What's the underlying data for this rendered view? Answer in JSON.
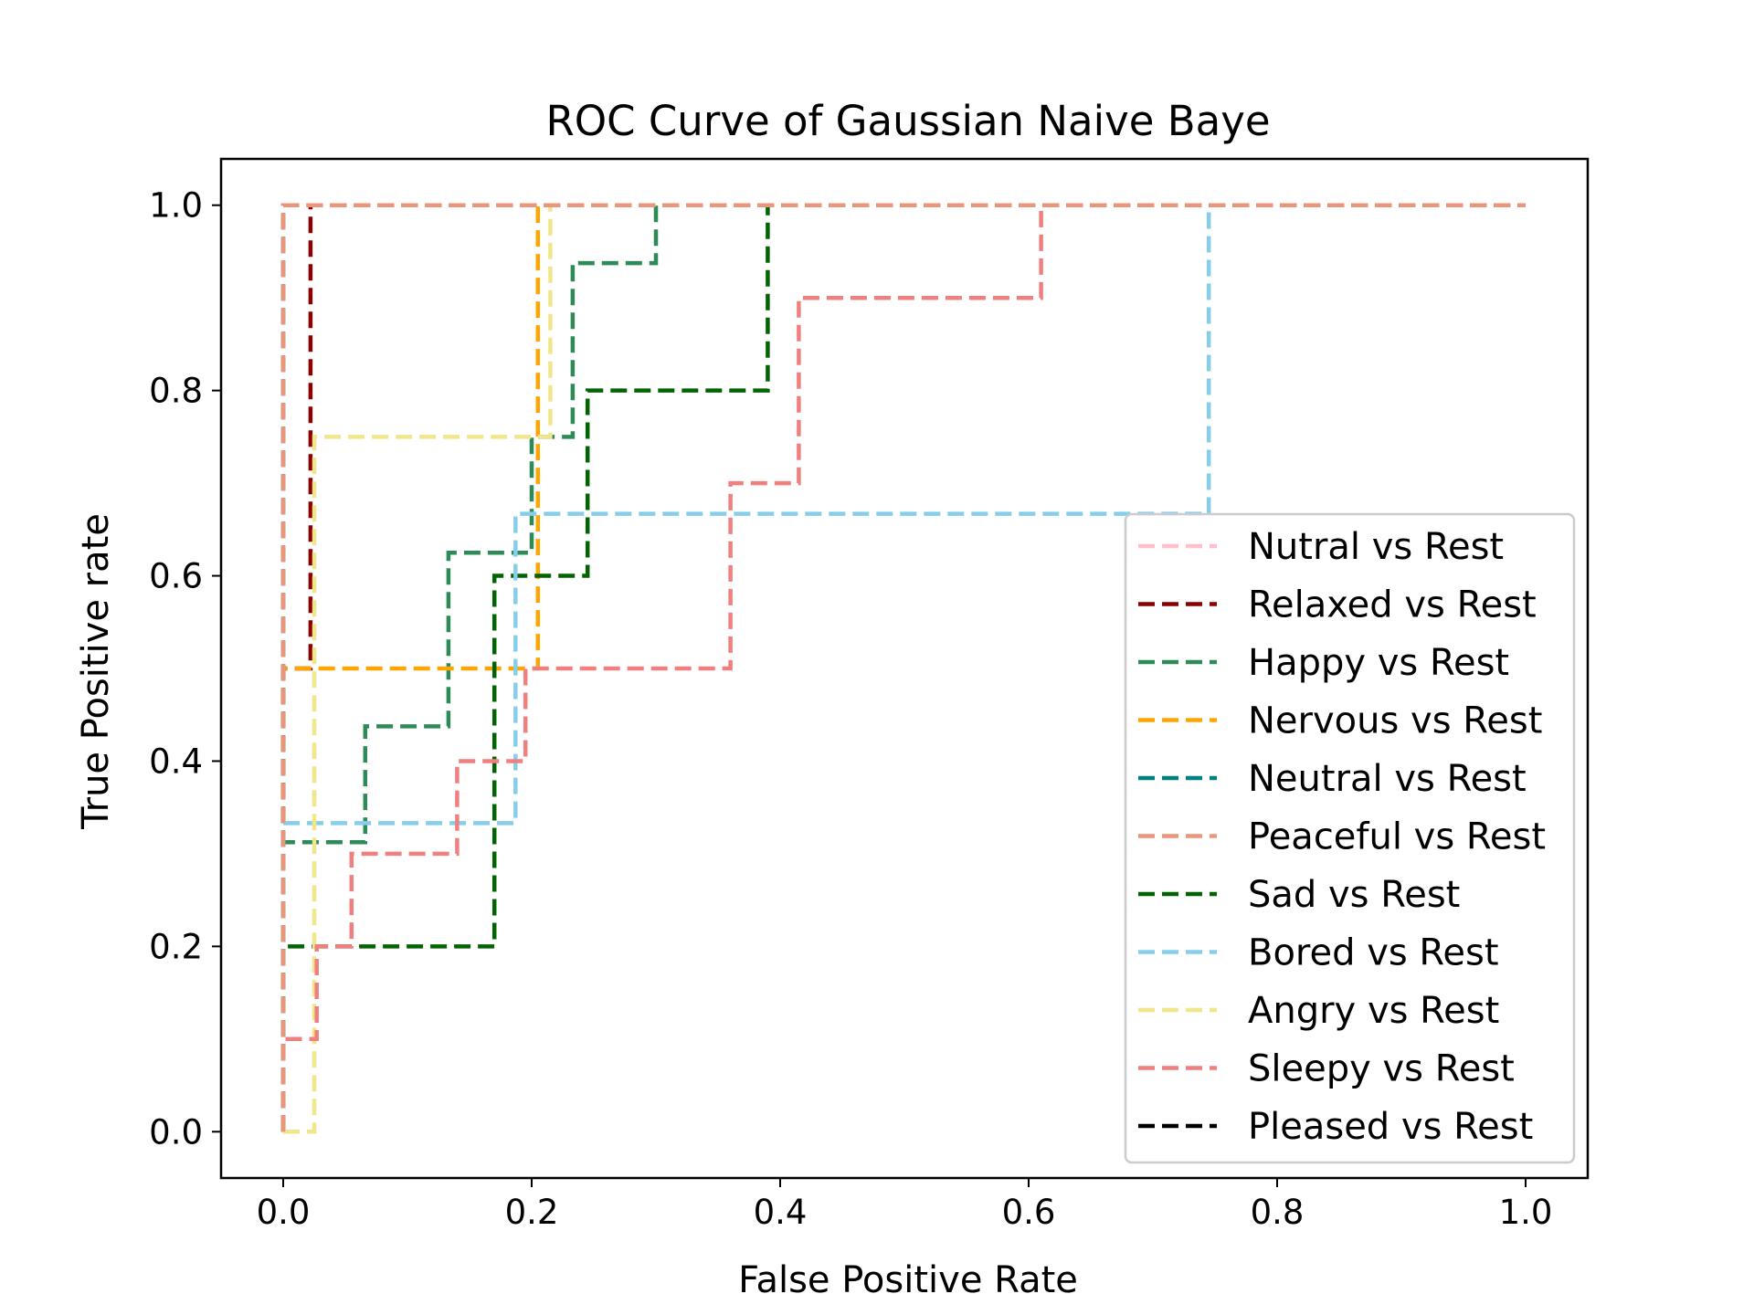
{
  "chart_data": {
    "type": "line",
    "title": "ROC Curve of Gaussian Naive Baye",
    "xlabel": "False Positive Rate",
    "ylabel": "True Positive rate",
    "xlim": [
      -0.05,
      1.05
    ],
    "ylim": [
      -0.05,
      1.05
    ],
    "xticks": [
      "0.0",
      "0.2",
      "0.4",
      "0.6",
      "0.8",
      "1.0"
    ],
    "yticks": [
      "0.0",
      "0.2",
      "0.4",
      "0.6",
      "0.8",
      "1.0"
    ],
    "grid": false,
    "legend_position": "lower-right",
    "line_style": "dashed",
    "series": [
      {
        "name": "Nutral vs Rest",
        "color": "#ffc0cb",
        "x": [
          0,
          0,
          1
        ],
        "y": [
          0,
          1,
          1
        ]
      },
      {
        "name": "Relaxed vs Rest",
        "color": "#8b0000",
        "x": [
          0,
          0,
          0.022,
          0.022,
          1
        ],
        "y": [
          0,
          0.5,
          0.5,
          1,
          1
        ]
      },
      {
        "name": "Happy vs Rest",
        "color": "#2e8b57",
        "x": [
          0,
          0,
          0.066,
          0.066,
          0.133,
          0.133,
          0.2,
          0.2,
          0.233,
          0.233,
          0.3,
          0.3,
          1
        ],
        "y": [
          0,
          0.3125,
          0.3125,
          0.4375,
          0.4375,
          0.625,
          0.625,
          0.75,
          0.75,
          0.9375,
          0.9375,
          1,
          1
        ]
      },
      {
        "name": "Nervous vs Rest",
        "color": "#ffa500",
        "x": [
          0,
          0,
          0.205,
          0.205,
          1
        ],
        "y": [
          0,
          0.5,
          0.5,
          1,
          1
        ]
      },
      {
        "name": "Neutral vs Rest",
        "color": "#008080",
        "x": [
          0,
          0,
          1
        ],
        "y": [
          0,
          1,
          1
        ]
      },
      {
        "name": "Peaceful vs Rest",
        "color": "#e9967a",
        "x": [
          0,
          0,
          1
        ],
        "y": [
          0,
          1,
          1
        ]
      },
      {
        "name": "Sad vs Rest",
        "color": "#006400",
        "x": [
          0,
          0,
          0.17,
          0.17,
          0.245,
          0.245,
          0.39,
          0.39,
          1
        ],
        "y": [
          0,
          0.2,
          0.2,
          0.6,
          0.6,
          0.8,
          0.8,
          1,
          1
        ]
      },
      {
        "name": "Bored vs Rest",
        "color": "#87ceeb",
        "x": [
          0,
          0,
          0.187,
          0.187,
          0.745,
          0.745,
          1
        ],
        "y": [
          0,
          0.333,
          0.333,
          0.667,
          0.667,
          1,
          1
        ]
      },
      {
        "name": "Angry vs Rest",
        "color": "#f0e68c",
        "x": [
          0,
          0.025,
          0.025,
          0.215,
          0.215,
          1
        ],
        "y": [
          0,
          0,
          0.75,
          0.75,
          1,
          1
        ]
      },
      {
        "name": "Sleepy vs Rest",
        "color": "#f08080",
        "x": [
          0,
          0,
          0.027,
          0.027,
          0.055,
          0.055,
          0.14,
          0.14,
          0.195,
          0.195,
          0.36,
          0.36,
          0.415,
          0.415,
          0.61,
          0.61,
          1
        ],
        "y": [
          0,
          0.1,
          0.1,
          0.2,
          0.2,
          0.3,
          0.3,
          0.4,
          0.4,
          0.5,
          0.5,
          0.7,
          0.7,
          0.9,
          0.9,
          1,
          1
        ]
      },
      {
        "name": "Pleased vs Rest",
        "color": "#000000",
        "x": [],
        "y": []
      }
    ],
    "draw_order": [
      0,
      1,
      2,
      3,
      4,
      6,
      7,
      8,
      9,
      5
    ]
  }
}
